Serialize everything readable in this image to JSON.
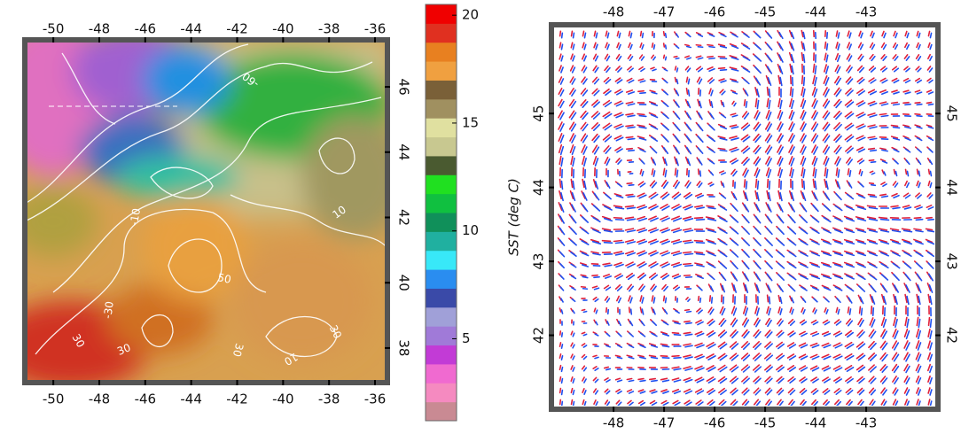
{
  "chart_data": [
    {
      "type": "map",
      "xlim": [
        -51.24,
        -35.46
      ],
      "xticks": [
        -50,
        -48,
        -46,
        -44,
        -42,
        -40,
        -38,
        -36
      ],
      "ylim": [
        36.94,
        47.44
      ],
      "yticks": [
        38,
        40,
        42,
        44,
        46
      ],
      "annotations": [
        "-30",
        "-60",
        "-10",
        "10",
        "30",
        "50",
        "30",
        "30",
        "10",
        "30"
      ]
    },
    {
      "type": "colorbar",
      "label": "SST (deg C)",
      "ylim": [
        1.2,
        20.5
      ],
      "yticks": [
        5,
        10,
        15,
        20
      ],
      "colors": [
        "#c98a93",
        "#f58ac0",
        "#f06ad0",
        "#c23bd6",
        "#a07ad8",
        "#a0a0d8",
        "#3a4aa8",
        "#2a8df0",
        "#38e8f8",
        "#20b0a0",
        "#10905a",
        "#10c040",
        "#20e020",
        "#4a5a30",
        "#c8c890",
        "#e0e0a0",
        "#a09060",
        "#7a6038",
        "#f0a040",
        "#e88020",
        "#e03020",
        "#f00000"
      ]
    },
    {
      "type": "quiver",
      "xlim": [
        -49.23,
        -41.58
      ],
      "xticks": [
        -48,
        -47,
        -46,
        -45,
        -44,
        -43
      ],
      "ylim": [
        41,
        46.2
      ],
      "yticks": [
        42,
        43,
        44,
        45
      ],
      "series": [
        {
          "color": "#e0203a"
        },
        {
          "color": "#2050f0"
        }
      ]
    }
  ]
}
